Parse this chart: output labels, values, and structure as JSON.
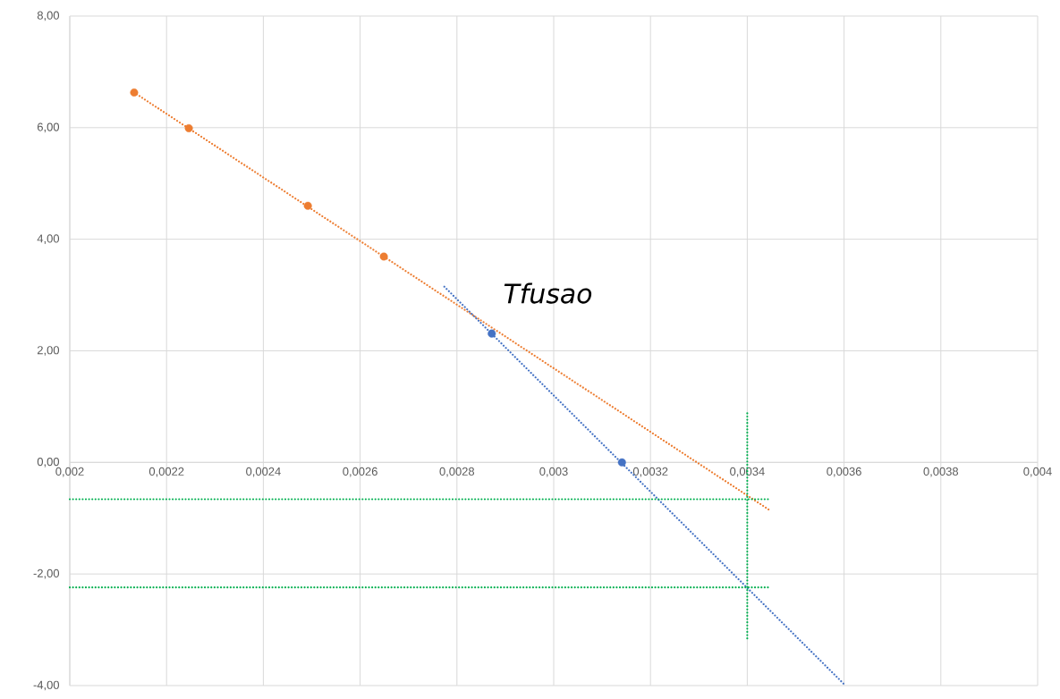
{
  "chart_data": {
    "type": "scatter",
    "xlim": [
      0.002,
      0.004
    ],
    "ylim": [
      -4,
      8
    ],
    "xticks": [
      {
        "value": 0.002,
        "label": "0,002"
      },
      {
        "value": 0.0022,
        "label": "0,0022"
      },
      {
        "value": 0.0024,
        "label": "0,0024"
      },
      {
        "value": 0.0026,
        "label": "0,0026"
      },
      {
        "value": 0.0028,
        "label": "0,0028"
      },
      {
        "value": 0.003,
        "label": "0,003"
      },
      {
        "value": 0.0032,
        "label": "0,0032"
      },
      {
        "value": 0.0034,
        "label": "0,0034"
      },
      {
        "value": 0.0036,
        "label": "0,0036"
      },
      {
        "value": 0.0038,
        "label": "0,0038"
      },
      {
        "value": 0.004,
        "label": "0,004"
      }
    ],
    "yticks": [
      {
        "value": -4,
        "label": "-4,00"
      },
      {
        "value": -2,
        "label": "-2,00"
      },
      {
        "value": 0,
        "label": "0,00"
      },
      {
        "value": 2,
        "label": "2,00"
      },
      {
        "value": 4,
        "label": "4,00"
      },
      {
        "value": 6,
        "label": "6,00"
      },
      {
        "value": 8,
        "label": "8,00"
      }
    ],
    "grid": true,
    "annotations": [
      "Tfusao"
    ],
    "series": [
      {
        "color": "#ed7d31",
        "marker": "circle",
        "x": [
          0.002133,
          0.002246,
          0.002492,
          0.002649
        ],
        "values": [
          6.63,
          5.99,
          4.6,
          3.69
        ]
      },
      {
        "color": "#4472c4",
        "marker": "circle",
        "x": [
          0.002872,
          0.003141
        ],
        "values": [
          2.31,
          0
        ]
      },
      {
        "type": "line",
        "color": "#ed7d31",
        "marker": "none",
        "line_style": "dotted",
        "x": [
          0.002133,
          0.003447
        ],
        "values": [
          6.63,
          -0.86
        ]
      },
      {
        "type": "line",
        "color": "#4472c4",
        "marker": "none",
        "line_style": "dotted",
        "x": [
          0.002774,
          0.003603
        ],
        "values": [
          3.15,
          -4.0
        ]
      },
      {
        "type": "line",
        "color": "#00b050",
        "marker": "none",
        "line_style": "dotted",
        "x": [
          0.002,
          0.003449
        ],
        "values": [
          -0.66,
          -0.66
        ]
      },
      {
        "type": "line",
        "color": "#00b050",
        "marker": "none",
        "line_style": "dotted",
        "x": [
          0.002,
          0.003449
        ],
        "values": [
          -2.24,
          -2.24
        ]
      },
      {
        "type": "line",
        "color": "#00b050",
        "marker": "none",
        "line_style": "dotted",
        "x": [
          0.0034,
          0.0034
        ],
        "values": [
          0.88,
          -3.2
        ]
      }
    ]
  }
}
